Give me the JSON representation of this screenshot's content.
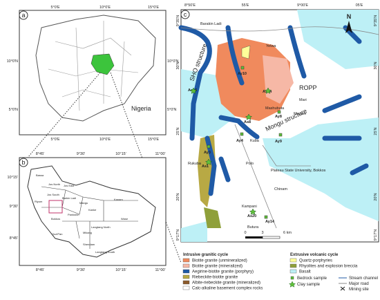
{
  "panel_a": {
    "label": "a",
    "country": "Nigeria",
    "top_ticks": [
      "5°0'E",
      "10°0'E",
      "15°0'E"
    ],
    "bottom_ticks": [
      "5°0'E",
      "10°0'E",
      "15°0'E"
    ],
    "left_ticks": [
      "10°0'N",
      "5°0'N"
    ],
    "right_ticks": [
      "10°0'N",
      "5°0'N"
    ]
  },
  "panel_b": {
    "label": "b",
    "top_ticks": [
      "8°45'",
      "9°30'",
      "10°15'",
      "11°00'"
    ],
    "bottom_ticks": [
      "8°45'",
      "9°30'",
      "10°15'",
      "11°00'"
    ],
    "left_ticks": [
      "10°15'",
      "9°30'",
      "8°45'"
    ],
    "areas": [
      "Bassa",
      "Jos North",
      "Jos East",
      "Jos South",
      "Riyom",
      "Barkin Ladi",
      "Bokkos",
      "Mangu",
      "Pankshin",
      "Kanke",
      "Kanam",
      "Langtang North",
      "Mikang",
      "Wase",
      "Shendam",
      "Qua'Pan",
      "Langtang South"
    ]
  },
  "panel_c": {
    "label": "c",
    "top_ticks": [
      "8°50'E",
      "55'E",
      "9°00'E",
      "05'E"
    ],
    "left_ticks": [
      "9°35'N",
      "30'N",
      "25'N",
      "20'N",
      "9°17'N"
    ],
    "right_ticks": [
      "9°35'N",
      "30'N",
      "25'N",
      "20'N",
      "9°17'N"
    ],
    "north": "N",
    "scale": [
      "0",
      "3",
      "6 km"
    ],
    "places": [
      "Barakin Ladi",
      "Yelwa",
      "SHO structure",
      "ROPP",
      "Mari",
      "Mashubuta",
      "Mazare",
      "Mongu structure",
      "Kuba",
      "Rukuba",
      "Polo",
      "Plateau State University, Bokkos",
      "Chinam",
      "Kampani",
      "Butura"
    ],
    "samples": [
      "Ay10",
      "As16",
      "As14",
      "As8",
      "Ay8",
      "Ay9",
      "Ay4",
      "Ay3",
      "As1",
      "As20",
      "Ay14"
    ]
  },
  "legend": {
    "intrusive_title": "Intrusive granitic cycle",
    "intrusive": [
      "Biotite granite (unmineralized)",
      "Biotite granite (mineralized)",
      "Aegirine-biotite granite (porphyry)",
      "Riebeckite-biotite granite",
      "Albite-riebeckite granite (mineralized)",
      "Calc-alkaline basement complex rocks"
    ],
    "extrusive_title": "Extrusive volcanic cycle",
    "extrusive": [
      "Quartz-porphyries",
      "Rhyolites and explosion breccia",
      "Basalt"
    ],
    "symbols": [
      "Bedrock sample",
      "Clay sample",
      "Stream channel",
      "Major road",
      "Mining site"
    ]
  }
}
